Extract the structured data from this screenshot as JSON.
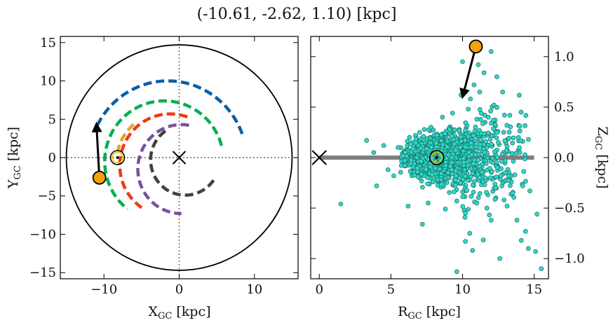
{
  "chart_data": [
    {
      "type": "scatter",
      "panel": "left",
      "title": "(-10.61, -2.62, 1.10) [kpc]",
      "xlabel": "X",
      "xlabel_sub": "GC",
      "xlabel_unit": " [kpc]",
      "ylabel": "Y",
      "ylabel_sub": "GC",
      "ylabel_unit": " [kpc]",
      "xlim": [
        -15.8,
        15.8
      ],
      "ylim": [
        -15.8,
        15.8
      ],
      "xticks": [
        -10,
        0,
        10
      ],
      "xtick_labels": [
        "−10",
        "0",
        "10"
      ],
      "yticks": [
        -15,
        -10,
        -5,
        0,
        5,
        10,
        15
      ],
      "ytick_labels": [
        "−15",
        "−10",
        "−5",
        "0",
        "5",
        "10",
        "15"
      ],
      "grid": false,
      "boundary_circle_radius": 15,
      "galactic_center": [
        0,
        0
      ],
      "sun": [
        -8.2,
        0
      ],
      "object": [
        -10.61,
        -2.62
      ],
      "velocity_arrow": {
        "from": [
          -10.61,
          -2.62
        ],
        "to": [
          -11.0,
          4.4
        ]
      },
      "arms": [
        {
          "color": "#0b5ea8",
          "center": [
            -1.5,
            -0.5
          ],
          "r": 10.5,
          "from_deg": 20,
          "to_deg": 155
        },
        {
          "color": "#00b050",
          "center": [
            -2.0,
            -0.5
          ],
          "r": 7.9,
          "from_deg": 15,
          "to_deg": 232
        },
        {
          "color": "#ef3b12",
          "center": [
            -1.2,
            -1.0
          ],
          "r": 6.7,
          "from_deg": 70,
          "to_deg": 240
        },
        {
          "color": "#f0a020",
          "center": [
            -2.0,
            -0.5
          ],
          "r": 6.3,
          "from_deg": 130,
          "to_deg": 168
        },
        {
          "color": "#7a519c",
          "center": [
            0.3,
            -1.5
          ],
          "r": 5.8,
          "from_deg": 80,
          "to_deg": 270
        },
        {
          "color": "#404040",
          "center": [
            0.8,
            -0.3
          ],
          "r": 4.6,
          "from_deg": 125,
          "to_deg": 330
        }
      ]
    },
    {
      "type": "scatter",
      "panel": "right",
      "xlabel": "R",
      "xlabel_sub": "GC",
      "xlabel_unit": " [kpc]",
      "ylabel": "Z",
      "ylabel_sub": "GC",
      "ylabel_unit": " [kpc]",
      "xlim": [
        -0.6,
        16.0
      ],
      "ylim": [
        -1.2,
        1.2
      ],
      "xticks": [
        0,
        5,
        10,
        15
      ],
      "xtick_labels": [
        "0",
        "5",
        "10",
        "15"
      ],
      "yticks": [
        -1.0,
        -0.5,
        0.0,
        0.5,
        1.0
      ],
      "ytick_labels": [
        "−1.0",
        "−0.5",
        "0.0",
        "0.5",
        "1.0"
      ],
      "grid": false,
      "disk_plane": {
        "z": 0,
        "from_r": 0,
        "to_r": 15
      },
      "galactic_center": [
        0,
        0
      ],
      "sun": [
        8.2,
        0
      ],
      "object": [
        10.93,
        1.1
      ],
      "velocity_arrow": {
        "from": [
          10.93,
          1.1
        ],
        "to": [
          10.0,
          0.6
        ]
      },
      "point_color": "#2fd8c8",
      "scatter_points": [
        [
          1.5,
          -0.46
        ],
        [
          3.3,
          0.17
        ],
        [
          4.0,
          -0.28
        ],
        [
          4.5,
          0.12
        ],
        [
          5.2,
          -0.18
        ],
        [
          6.2,
          -0.48
        ],
        [
          7.2,
          -0.66
        ],
        [
          7.8,
          0.3
        ],
        [
          9.6,
          -1.13
        ],
        [
          10.2,
          -0.83
        ],
        [
          10.5,
          -0.75
        ],
        [
          10.7,
          -0.92
        ],
        [
          11.5,
          0.84
        ],
        [
          12.0,
          1.05
        ],
        [
          12.6,
          -1.0
        ],
        [
          12.8,
          0.65
        ],
        [
          13.3,
          0.42
        ],
        [
          13.8,
          -0.62
        ],
        [
          14.1,
          -0.82
        ],
        [
          14.4,
          -0.73
        ],
        [
          14.6,
          -0.9
        ],
        [
          15.1,
          -0.93
        ],
        [
          15.5,
          -1.1
        ],
        [
          15.2,
          -0.56
        ],
        [
          14.2,
          -0.28
        ],
        [
          14.7,
          -0.33
        ],
        [
          13.9,
          0.2
        ],
        [
          12.9,
          -0.42
        ],
        [
          13.1,
          0.32
        ],
        [
          14.6,
          0.18
        ],
        [
          11.7,
          -0.5
        ],
        [
          12.3,
          -0.3
        ],
        [
          9.9,
          0.62
        ],
        [
          10.4,
          0.48
        ],
        [
          11.2,
          0.65
        ],
        [
          12.2,
          0.52
        ],
        [
          10.8,
          0.72
        ],
        [
          9.3,
          0.44
        ],
        [
          8.6,
          0.4
        ],
        [
          7.6,
          -0.45
        ],
        [
          8.8,
          -0.51
        ],
        [
          9.6,
          -0.43
        ],
        [
          10.2,
          -0.55
        ],
        [
          11.0,
          -0.45
        ],
        [
          12.0,
          -0.62
        ],
        [
          10.0,
          0.95
        ],
        [
          11.1,
          0.92
        ],
        [
          12.4,
          0.8
        ],
        [
          11.6,
          -0.2
        ],
        [
          12.5,
          0.15
        ],
        [
          13.0,
          -0.15
        ],
        [
          11.0,
          0.38
        ],
        [
          11.8,
          0.4
        ],
        [
          7.0,
          0.25
        ],
        [
          6.3,
          0.2
        ],
        [
          5.5,
          0.1
        ],
        [
          4.8,
          -0.12
        ],
        [
          3.8,
          0.05
        ],
        [
          13.5,
          -0.35
        ],
        [
          14.0,
          0.05
        ]
      ]
    }
  ]
}
